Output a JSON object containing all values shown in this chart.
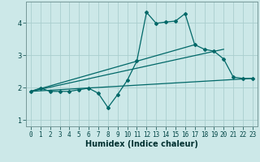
{
  "bg_color": "#cce8e8",
  "grid_color": "#aacece",
  "line_color": "#006868",
  "xlabel": "Humidex (Indice chaleur)",
  "xlim": [
    -0.5,
    23.5
  ],
  "ylim": [
    0.8,
    4.65
  ],
  "yticks": [
    1,
    2,
    3,
    4
  ],
  "xticks": [
    0,
    1,
    2,
    3,
    4,
    5,
    6,
    7,
    8,
    9,
    10,
    11,
    12,
    13,
    14,
    15,
    16,
    17,
    18,
    19,
    20,
    21,
    22,
    23
  ],
  "line1_x": [
    0,
    1,
    2,
    3,
    4,
    5,
    6,
    7,
    8,
    9,
    10,
    11,
    12,
    13,
    14,
    15,
    16,
    17,
    18,
    19,
    20,
    21,
    22,
    23
  ],
  "line1_y": [
    1.88,
    1.98,
    1.88,
    1.88,
    1.88,
    1.93,
    1.98,
    1.82,
    1.38,
    1.78,
    2.22,
    2.82,
    4.32,
    3.98,
    4.02,
    4.05,
    4.28,
    3.32,
    3.18,
    3.12,
    2.88,
    2.32,
    2.28,
    2.28
  ],
  "line2_x": [
    0,
    23
  ],
  "line2_y": [
    1.88,
    2.28
  ],
  "line3_x": [
    0,
    20
  ],
  "line3_y": [
    1.88,
    3.18
  ],
  "line4_x": [
    0,
    17
  ],
  "line4_y": [
    1.88,
    3.32
  ]
}
